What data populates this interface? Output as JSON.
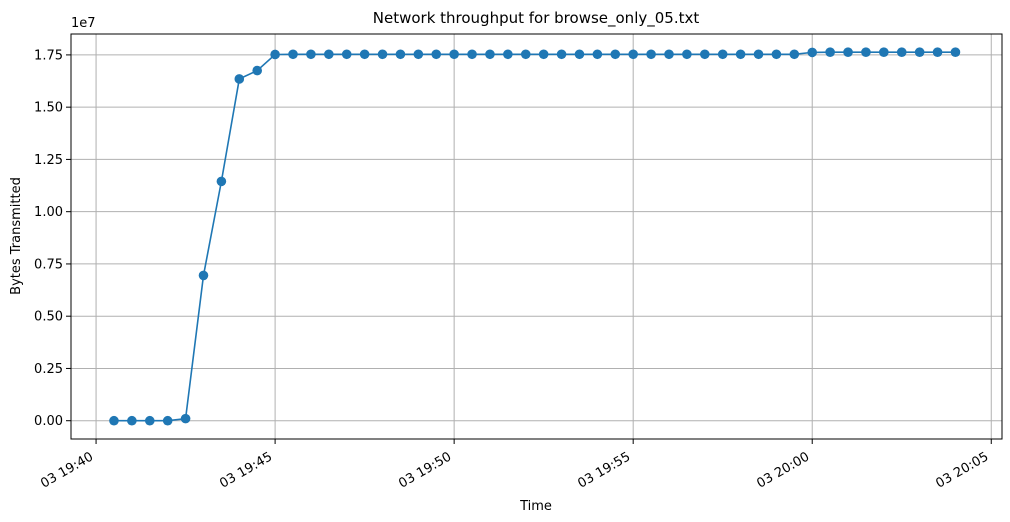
{
  "chart_data": {
    "type": "line",
    "title": "Network throughput for browse_only_05.txt",
    "xlabel": "Time",
    "ylabel": "Bytes Transmitted",
    "y_offset_label": "1e7",
    "y_scale": 10000000,
    "grid": true,
    "color": "#1f77b4",
    "marker": "circle",
    "x_ticks": [
      "03 19:40",
      "03 19:45",
      "03 19:50",
      "03 19:55",
      "03 20:00",
      "03 20:05"
    ],
    "x_tick_minutes": [
      0,
      5,
      10,
      15,
      20,
      25
    ],
    "xlim_minutes": [
      -0.7,
      25.3
    ],
    "y_ticks": [
      "0.00",
      "0.25",
      "0.50",
      "0.75",
      "1.00",
      "1.25",
      "1.50",
      "1.75"
    ],
    "y_tick_values": [
      0,
      0.25,
      0.5,
      0.75,
      1.0,
      1.25,
      1.5,
      1.75
    ],
    "ylim": [
      -0.0875,
      1.85
    ],
    "series": [
      {
        "x_minutes": [
          0.5,
          1.0,
          1.5,
          2.0,
          2.5,
          3.0,
          3.5,
          4.0,
          4.5,
          5.0,
          5.5,
          6.0,
          6.5,
          7.0,
          7.5,
          8.0,
          8.5,
          9.0,
          9.5,
          10.0,
          10.5,
          11.0,
          11.5,
          12.0,
          12.5,
          13.0,
          13.5,
          14.0,
          14.5,
          15.0,
          15.5,
          16.0,
          16.5,
          17.0,
          17.5,
          18.0,
          18.5,
          19.0,
          19.5,
          20.0,
          20.5,
          21.0,
          21.5,
          22.0,
          22.5,
          23.0,
          23.5,
          24.0
        ],
        "values": [
          0.0,
          0.0,
          0.0,
          0.0,
          0.01,
          0.695,
          1.145,
          1.635,
          1.675,
          1.752,
          1.753,
          1.753,
          1.753,
          1.753,
          1.753,
          1.753,
          1.753,
          1.753,
          1.753,
          1.753,
          1.753,
          1.753,
          1.753,
          1.753,
          1.753,
          1.753,
          1.753,
          1.753,
          1.753,
          1.753,
          1.753,
          1.753,
          1.753,
          1.753,
          1.753,
          1.753,
          1.753,
          1.753,
          1.753,
          1.762,
          1.763,
          1.763,
          1.763,
          1.763,
          1.763,
          1.763,
          1.763,
          1.763
        ]
      }
    ]
  }
}
